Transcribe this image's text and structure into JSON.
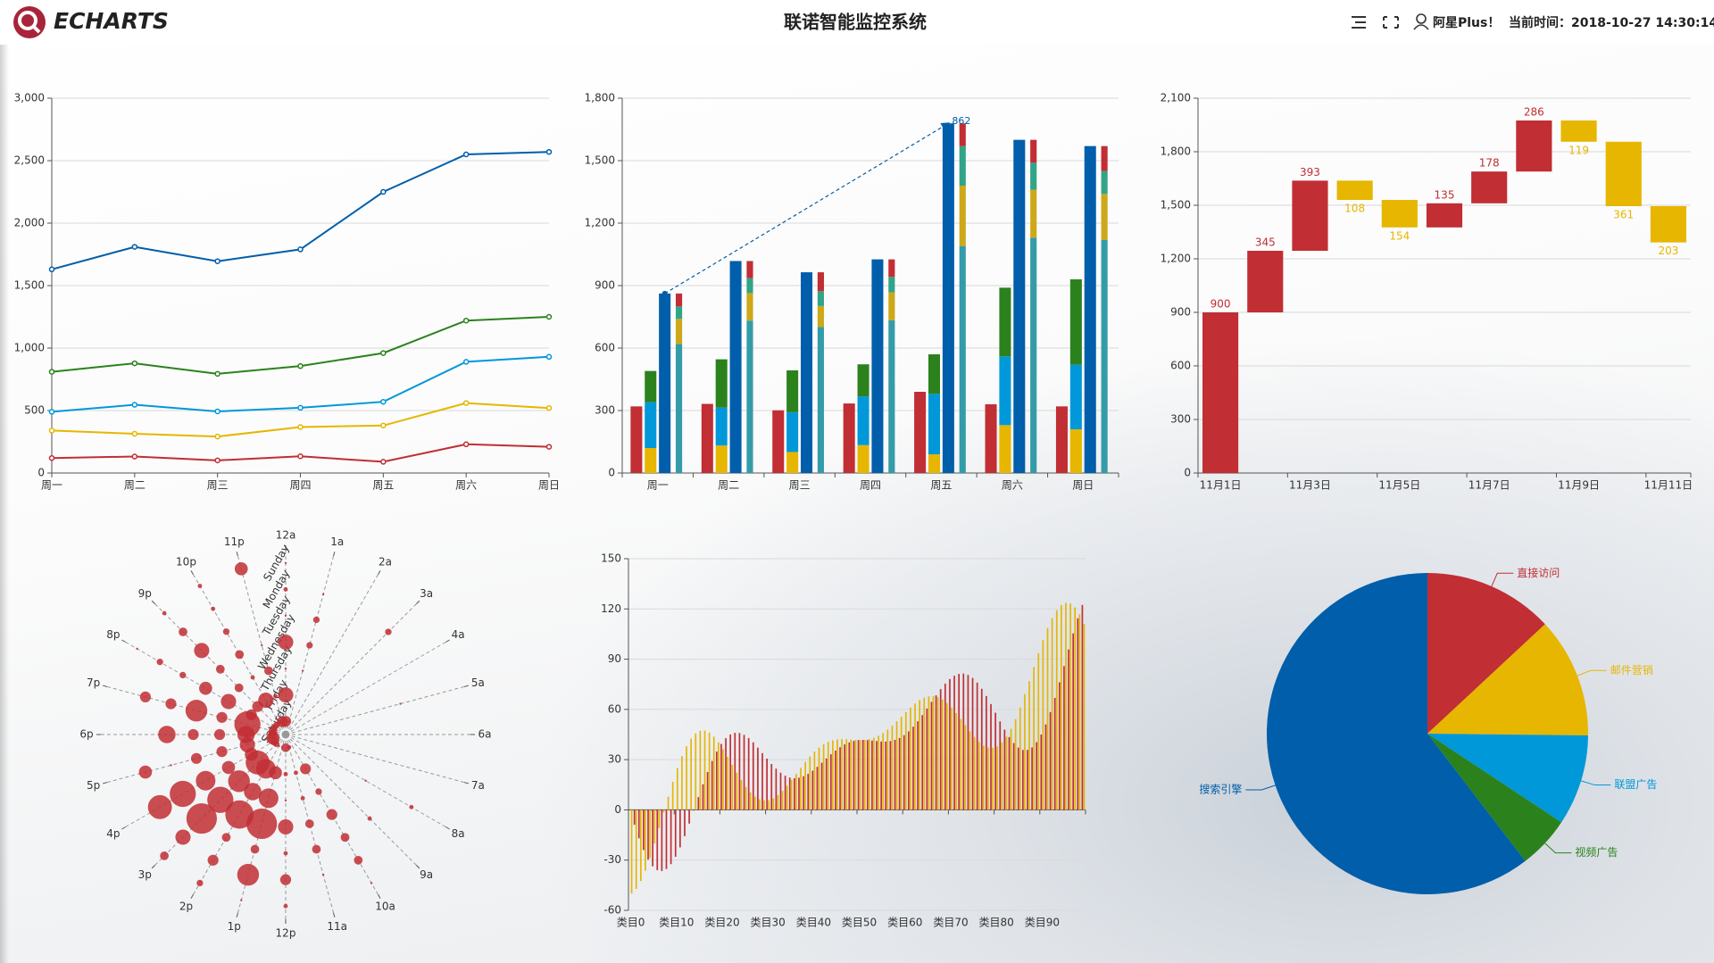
{
  "header": {
    "logo": "ECHARTS",
    "title": "联诺智能监控系统",
    "user": "阿星Plus！",
    "time_label": "当前时间：",
    "time": "2018-10-27 14:30:14"
  },
  "chart_data": [
    {
      "type": "line",
      "stacked": true,
      "grid": true,
      "categories": [
        "周一",
        "周二",
        "周三",
        "周四",
        "周五",
        "周六",
        "周日"
      ],
      "ylim": [
        0,
        3000
      ],
      "yticks": [
        0,
        500,
        {
          "value": 1000,
          "label": "1,000"
        },
        {
          "value": 1500,
          "label": "1,500"
        },
        {
          "value": 2000,
          "label": "2,000"
        },
        {
          "value": 2500,
          "label": "2,500"
        },
        {
          "value": 3000,
          "label": "3,000"
        }
      ],
      "series": [
        {
          "color": "#c12e34",
          "values": [
            120,
            132,
            101,
            134,
            90,
            230,
            210
          ]
        },
        {
          "color": "#e6b600",
          "values": [
            220,
            182,
            191,
            234,
            290,
            330,
            310
          ]
        },
        {
          "color": "#0098d9",
          "values": [
            150,
            232,
            201,
            154,
            190,
            330,
            410
          ]
        },
        {
          "color": "#2b821d",
          "values": [
            320,
            332,
            301,
            334,
            390,
            330,
            320
          ]
        },
        {
          "color": "#005eaa",
          "values": [
            820,
            932,
            901,
            934,
            1290,
            1330,
            1320
          ]
        }
      ]
    },
    {
      "type": "bar",
      "grid": true,
      "categories": [
        "周一",
        "周二",
        "周三",
        "周四",
        "周五",
        "周六",
        "周日"
      ],
      "ylim": [
        0,
        1800
      ],
      "yticks": [
        0,
        300,
        600,
        900,
        {
          "value": 1200,
          "label": "1,200"
        },
        {
          "value": 1500,
          "label": "1,500"
        },
        {
          "value": 1800,
          "label": "1,800"
        }
      ],
      "bars": [
        [
          {
            "color": "#c12e34",
            "values": [
              320,
              332,
              301,
              334,
              390,
              330,
              320
            ]
          }
        ],
        [
          {
            "color": "#e6b600",
            "values": [
              120,
              132,
              101,
              134,
              90,
              230,
              210
            ]
          },
          {
            "color": "#0098d9",
            "values": [
              220,
              182,
              191,
              234,
              290,
              330,
              310
            ]
          },
          {
            "color": "#2b821d",
            "values": [
              150,
              232,
              201,
              154,
              190,
              330,
              410
            ]
          }
        ],
        [
          {
            "color": "#005eaa",
            "markline": true,
            "values": [
              862,
              1018,
              964,
              1026,
              1679,
              1600,
              1570
            ]
          }
        ],
        [
          {
            "color": "#339ca8",
            "values": [
              620,
              732,
              701,
              734,
              1090,
              1130,
              1120
            ]
          },
          {
            "color": "#cda819",
            "values": [
              120,
              132,
              101,
              134,
              290,
              230,
              220
            ]
          },
          {
            "color": "#32a487",
            "values": [
              60,
              72,
              71,
              74,
              190,
              130,
              110
            ]
          },
          {
            "color": "#c12e34",
            "values": [
              62,
              82,
              91,
              84,
              109,
              110,
              120
            ]
          }
        ]
      ]
    },
    {
      "type": "waterfall",
      "grid": true,
      "categories": [
        "11月1日",
        null,
        "11月3日",
        null,
        "11月5日",
        null,
        "11月7日",
        null,
        "11月9日",
        null,
        "11月11日"
      ],
      "ylim": [
        0,
        2100
      ],
      "yticks": [
        0,
        300,
        600,
        900,
        {
          "value": 1200,
          "label": "1,200"
        },
        {
          "value": 1500,
          "label": "1,500"
        },
        {
          "value": 1800,
          "label": "1,800"
        },
        {
          "value": 2100,
          "label": "2,100"
        }
      ],
      "series": [
        {
          "color": "#c12e34",
          "values": [
            900,
            345,
            393,
            null,
            null,
            135,
            178,
            286,
            null,
            null,
            null
          ]
        },
        {
          "color": "#e6b600",
          "values": [
            null,
            null,
            null,
            108,
            154,
            null,
            null,
            null,
            119,
            361,
            203
          ]
        }
      ]
    },
    {
      "type": "polar",
      "color": "#c12e34",
      "angle_categories": [
        "12a",
        "1a",
        "2a",
        "3a",
        "4a",
        "5a",
        "6a",
        "7a",
        "8a",
        "9a",
        "10a",
        "11a",
        "12p",
        "1p",
        "2p",
        "3p",
        "4p",
        "5p",
        "6p",
        "7p",
        "8p",
        "9p",
        "10p",
        "11p"
      ],
      "radial_categories": [
        "Saturday",
        "Friday",
        "Thursday",
        "Wednesday",
        "Tuesday",
        "Monday",
        "Sunday"
      ],
      "values": [
        [
          5,
          1,
          0,
          0,
          0,
          0,
          0,
          0,
          0,
          0,
          0,
          2,
          4,
          1,
          1,
          3,
          4,
          6,
          4,
          4,
          3,
          3,
          2,
          5
        ],
        [
          7,
          0,
          0,
          0,
          0,
          0,
          0,
          0,
          0,
          0,
          5,
          2,
          2,
          6,
          9,
          11,
          6,
          7,
          8,
          12,
          5,
          5,
          7,
          2
        ],
        [
          1,
          1,
          0,
          0,
          0,
          0,
          0,
          0,
          0,
          0,
          3,
          2,
          1,
          9,
          8,
          10,
          6,
          5,
          5,
          5,
          7,
          4,
          2,
          4
        ],
        [
          7,
          3,
          0,
          0,
          0,
          0,
          0,
          0,
          1,
          0,
          5,
          4,
          7,
          14,
          13,
          12,
          9,
          5,
          5,
          10,
          6,
          4,
          4,
          1
        ],
        [
          1,
          3,
          0,
          0,
          0,
          1,
          0,
          0,
          0,
          2,
          4,
          4,
          2,
          4,
          4,
          14,
          12,
          1,
          8,
          5,
          3,
          7,
          3,
          0
        ],
        [
          2,
          1,
          0,
          3,
          0,
          0,
          0,
          0,
          2,
          0,
          4,
          1,
          5,
          10,
          5,
          7,
          11,
          6,
          0,
          5,
          3,
          4,
          2,
          0
        ],
        [
          1,
          0,
          0,
          0,
          0,
          0,
          0,
          0,
          0,
          0,
          1,
          0,
          2,
          1,
          3,
          4,
          0,
          0,
          0,
          0,
          1,
          2,
          2,
          6
        ]
      ]
    },
    {
      "type": "bar",
      "grid": true,
      "categories": [
        "类目0",
        null,
        null,
        null,
        null,
        null,
        null,
        null,
        null,
        null,
        "类目10",
        null,
        null,
        null,
        null,
        null,
        null,
        null,
        null,
        null,
        "类目20",
        null,
        null,
        null,
        null,
        null,
        null,
        null,
        null,
        null,
        "类目30",
        null,
        null,
        null,
        null,
        null,
        null,
        null,
        null,
        null,
        "类目40",
        null,
        null,
        null,
        null,
        null,
        null,
        null,
        null,
        null,
        "类目50",
        null,
        null,
        null,
        null,
        null,
        null,
        null,
        null,
        null,
        "类目60",
        null,
        null,
        null,
        null,
        null,
        null,
        null,
        null,
        null,
        "类目70",
        null,
        null,
        null,
        null,
        null,
        null,
        null,
        null,
        null,
        "类目80",
        null,
        null,
        null,
        null,
        null,
        null,
        null,
        null,
        null,
        "类目90",
        null,
        null,
        null,
        null,
        null,
        null,
        null,
        null,
        null
      ],
      "ylim": [
        -60,
        150
      ],
      "yticks": [
        -60,
        -30,
        0,
        30,
        60,
        90,
        120,
        150
      ],
      "series": [
        {
          "color": "#c12e34",
          "values": [
            0,
            -8.9,
            -17.0,
            -24.0,
            -29.7,
            -33.7,
            -36.0,
            -36.5,
            -35.3,
            -32.4,
            -28.0,
            -22.4,
            -15.7,
            -8.2,
            -0.4,
            7.6,
            15.3,
            22.6,
            29.2,
            34.8,
            39.4,
            42.8,
            45.0,
            46.0,
            45.9,
            44.8,
            42.9,
            40.3,
            37.2,
            33.9,
            30.6,
            27.4,
            24.6,
            22.2,
            20.4,
            19.3,
            18.9,
            19.2,
            20.1,
            21.5,
            23.4,
            25.7,
            28.2,
            30.7,
            33.2,
            35.4,
            37.4,
            39.1,
            40.3,
            41.2,
            41.7,
            41.8,
            41.7,
            41.4,
            41.1,
            40.8,
            40.8,
            41.1,
            41.8,
            42.9,
            44.6,
            46.9,
            49.7,
            52.9,
            56.6,
            60.5,
            64.5,
            68.4,
            72.1,
            75.4,
            78.1,
            80.1,
            81.2,
            81.4,
            80.6,
            78.8,
            76.0,
            72.3,
            68.0,
            63.2,
            58.0,
            52.8,
            47.9,
            43.5,
            39.9,
            37.2,
            35.8,
            35.8,
            37.3,
            40.4,
            45.0,
            51.0,
            58.4,
            66.9,
            76.2,
            85.9,
            95.8,
            105.4,
            114.4,
            122.4
          ]
        },
        {
          "color": "#e6b600",
          "values": [
            -50,
            -47.2,
            -42.5,
            -36.3,
            -28.7,
            -20.1,
            -10.9,
            -1.5,
            7.9,
            16.8,
            25.0,
            32.1,
            38.0,
            42.5,
            45.6,
            47.2,
            47.3,
            46.1,
            43.7,
            40.4,
            36.3,
            31.7,
            26.9,
            22.2,
            17.7,
            13.7,
            10.4,
            7.9,
            6.3,
            5.6,
            5.8,
            6.9,
            8.8,
            11.3,
            14.4,
            17.9,
            21.5,
            25.1,
            28.7,
            31.9,
            34.8,
            37.2,
            39.2,
            40.6,
            41.5,
            42.1,
            42.2,
            42.2,
            42.0,
            41.8,
            41.7,
            41.8,
            42.2,
            43.0,
            44.2,
            45.9,
            47.9,
            50.3,
            52.9,
            55.6,
            58.4,
            61.1,
            63.5,
            65.5,
            67.0,
            67.8,
            67.9,
            67.3,
            65.9,
            63.8,
            61.1,
            57.8,
            54.3,
            50.6,
            46.9,
            43.5,
            40.6,
            38.4,
            37.2,
            37.0,
            37.9,
            40.2,
            43.7,
            48.4,
            54.2,
            61.2,
            69.1,
            76.9,
            85.3,
            93.6,
            101.4,
            108.5,
            114.5,
            119.2,
            122.3,
            123.7,
            123.2,
            120.9,
            116.8,
            111.0
          ]
        }
      ]
    },
    {
      "type": "pie",
      "categories": [
        "直接访问",
        "邮件营销",
        "联盟广告",
        "视频广告",
        "搜索引擎"
      ],
      "values": [
        335,
        310,
        234,
        135,
        1548
      ],
      "colors": [
        "#c12e34",
        "#e6b600",
        "#0098d9",
        "#2b821d",
        "#005eaa"
      ]
    }
  ]
}
